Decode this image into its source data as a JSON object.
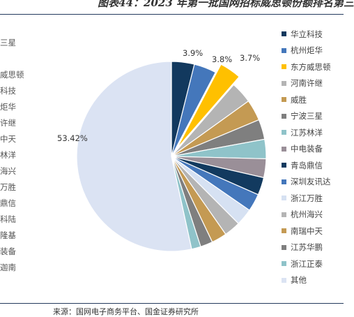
{
  "header": {
    "title": "图表44：2023 年第一批国网招标威思顿份额排名第三"
  },
  "left_labels": [
    "三星",
    "威思顿",
    "科技",
    "炬华",
    "许继",
    "中天",
    "林洋",
    "海兴",
    "万胜",
    "鼎信",
    "科陆",
    "隆基",
    "装备",
    "迦南"
  ],
  "footer": {
    "source": "来源：国网电子商务平台、国金证券研究所"
  },
  "chart_data": {
    "type": "pie",
    "title": "",
    "start_angle_deg": 0,
    "direction": "clockwise",
    "categories": [
      "华立科技",
      "杭州炬华",
      "东方威思顿",
      "河南许继",
      "威胜",
      "宁波三星",
      "江苏林洋",
      "中电装备",
      "青岛鼎信",
      "深圳友讯达",
      "浙江万胜",
      "杭州海兴",
      "南瑞中天",
      "江苏华鹏",
      "浙江正泰",
      "其他"
    ],
    "values": [
      3.9,
      3.8,
      3.7,
      3.7,
      3.6,
      3.4,
      3.3,
      3.2,
      3.0,
      3.0,
      2.9,
      2.8,
      2.6,
      2.1,
      1.58,
      53.42
    ],
    "colors": [
      "#12395e",
      "#4477bb",
      "#ffc000",
      "#b4b4b4",
      "#c49a53",
      "#7f7f7f",
      "#8fc3c9",
      "#9a8f98",
      "#123a5f",
      "#4477bb",
      "#d6e1f2",
      "#b4b4b4",
      "#c49a53",
      "#7f7f7f",
      "#8fc3c9",
      "#dbe3f3"
    ],
    "exploded_index": 2,
    "data_labels": [
      {
        "index": 0,
        "text": "3.9%"
      },
      {
        "index": 1,
        "text": "3.8%"
      },
      {
        "index": 2,
        "text": "3.7%"
      },
      {
        "index": 15,
        "text": "53.42%"
      }
    ],
    "legend_position": "right"
  }
}
